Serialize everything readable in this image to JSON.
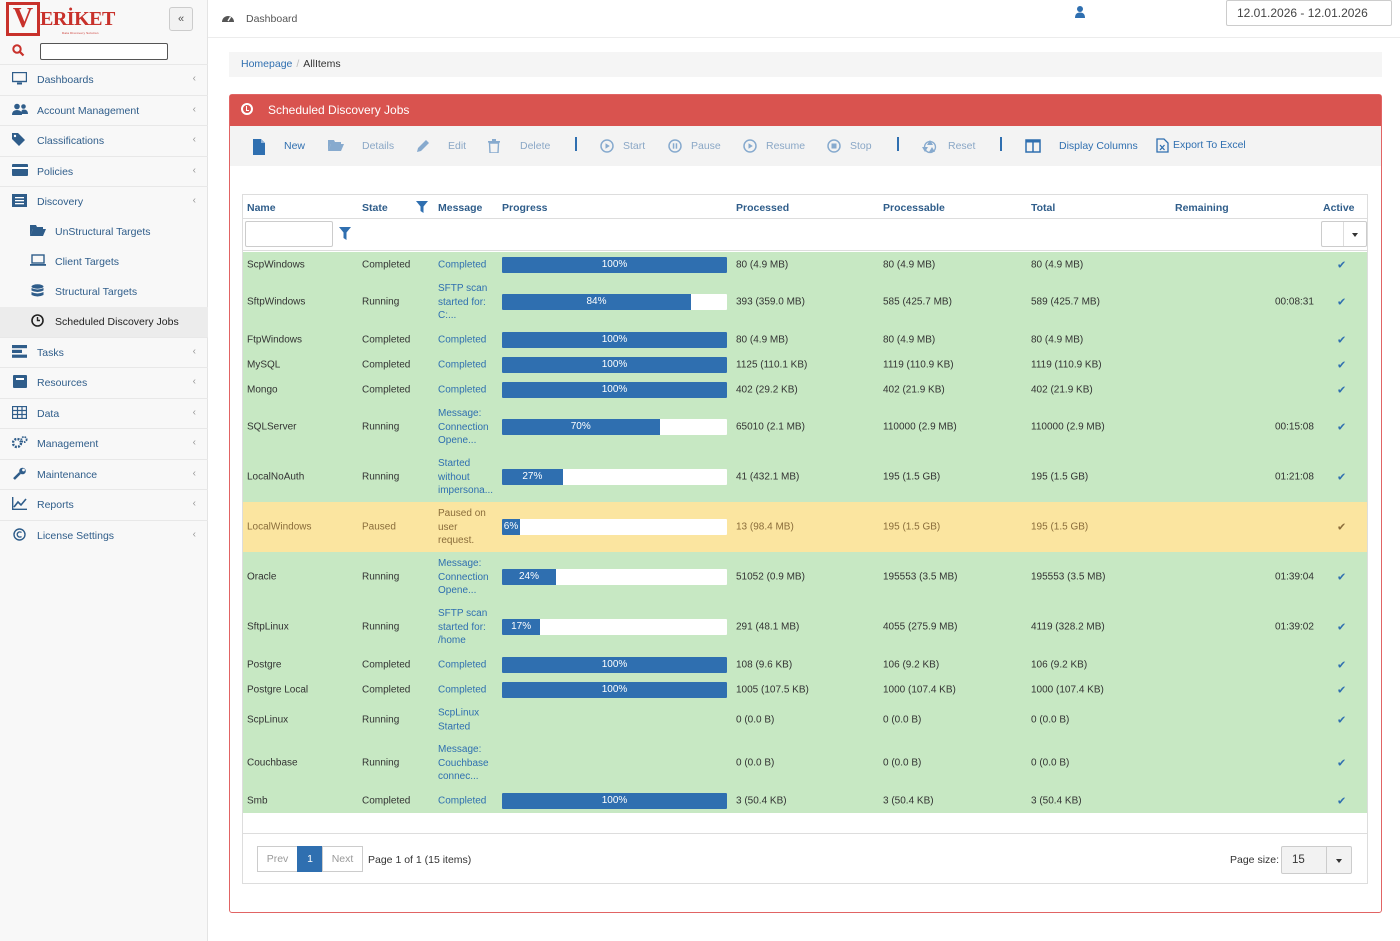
{
  "brand": {
    "logo_letter": "V",
    "logo_word": "ERİKET",
    "tagline": "Data Discovery Solution"
  },
  "sidebar": {
    "collapse_label": "«",
    "items": [
      {
        "label": "Dashboards",
        "icon": "monitor-icon",
        "chevron": "‹"
      },
      {
        "label": "Account Management",
        "icon": "users-icon",
        "chevron": "‹"
      },
      {
        "label": "Classifications",
        "icon": "tags-icon",
        "chevron": "‹"
      },
      {
        "label": "Policies",
        "icon": "card-icon",
        "chevron": "‹"
      },
      {
        "label": "Discovery",
        "icon": "list-icon",
        "chevron": "‹"
      },
      {
        "label": "UnStructural Targets",
        "icon": "folder-icon"
      },
      {
        "label": "Client Targets",
        "icon": "laptop-icon"
      },
      {
        "label": "Structural Targets",
        "icon": "database-icon"
      },
      {
        "label": "Scheduled Discovery Jobs",
        "icon": "clock-icon"
      },
      {
        "label": "Tasks",
        "icon": "tasks-icon",
        "chevron": "‹"
      },
      {
        "label": "Resources",
        "icon": "resource-icon",
        "chevron": "‹"
      },
      {
        "label": "Data",
        "icon": "table-icon",
        "chevron": "‹"
      },
      {
        "label": "Management",
        "icon": "cogs-icon",
        "chevron": "‹"
      },
      {
        "label": "Maintenance",
        "icon": "wrench-icon",
        "chevron": "‹"
      },
      {
        "label": "Reports",
        "icon": "chart-icon",
        "chevron": "‹"
      },
      {
        "label": "License Settings",
        "icon": "copyright-icon",
        "chevron": "‹"
      }
    ]
  },
  "topbar": {
    "page_label": "Dashboard",
    "date_range": "12.01.2026 - 12.01.2026"
  },
  "breadcrumb": {
    "home": "Homepage",
    "sep": "/",
    "current": "AllItems"
  },
  "panel": {
    "title": "Scheduled Discovery Jobs"
  },
  "toolbar": {
    "new": "New",
    "details": "Details",
    "edit": "Edit",
    "delete": "Delete",
    "start": "Start",
    "pause": "Pause",
    "resume": "Resume",
    "stop": "Stop",
    "reset": "Reset",
    "display_columns": "Display Columns",
    "export": "Export To Excel"
  },
  "columns": {
    "name": "Name",
    "state": "State",
    "message": "Message",
    "progress": "Progress",
    "processed": "Processed",
    "processable": "Processable",
    "total": "Total",
    "remaining": "Remaining",
    "active": "Active"
  },
  "colors": {
    "accent": "#2f6fb0",
    "header_red": "#d9534f",
    "row_green": "#c7e8c3",
    "row_paused": "#fbe5a0"
  },
  "rows": [
    {
      "name": "ScpWindows",
      "state": "Completed",
      "msg": [
        "Completed"
      ],
      "progress": 100,
      "processed": "80 (4.9 MB)",
      "processable": "80 (4.9 MB)",
      "total": "80 (4.9 MB)",
      "remaining": "",
      "active": "✔"
    },
    {
      "name": "SftpWindows",
      "state": "Running",
      "msg": [
        "SFTP scan",
        "started for:",
        "C:..."
      ],
      "progress": 84,
      "processed": "393 (359.0 MB)",
      "processable": "585 (425.7 MB)",
      "total": "589 (425.7 MB)",
      "remaining": "00:08:31",
      "active": "✔"
    },
    {
      "name": "FtpWindows",
      "state": "Completed",
      "msg": [
        "Completed"
      ],
      "progress": 100,
      "processed": "80 (4.9 MB)",
      "processable": "80 (4.9 MB)",
      "total": "80 (4.9 MB)",
      "remaining": "",
      "active": "✔"
    },
    {
      "name": "MySQL",
      "state": "Completed",
      "msg": [
        "Completed"
      ],
      "progress": 100,
      "processed": "1125 (110.1 KB)",
      "processable": "1119 (110.9 KB)",
      "total": "1119 (110.9 KB)",
      "remaining": "",
      "active": "✔"
    },
    {
      "name": "Mongo",
      "state": "Completed",
      "msg": [
        "Completed"
      ],
      "progress": 100,
      "processed": "402 (29.2 KB)",
      "processable": "402 (21.9 KB)",
      "total": "402 (21.9 KB)",
      "remaining": "",
      "active": "✔"
    },
    {
      "name": "SQLServer",
      "state": "Running",
      "msg": [
        "Message:",
        "Connection",
        "Opene..."
      ],
      "progress": 70,
      "processed": "65010 (2.1 MB)",
      "processable": "110000 (2.9 MB)",
      "total": "110000 (2.9 MB)",
      "remaining": "00:15:08",
      "active": "✔"
    },
    {
      "name": "LocalNoAuth",
      "state": "Running",
      "msg": [
        "Started",
        "without",
        "impersona..."
      ],
      "progress": 27,
      "processed": "41 (432.1 MB)",
      "processable": "195 (1.5 GB)",
      "total": "195 (1.5 GB)",
      "remaining": "01:21:08",
      "active": "✔"
    },
    {
      "name": "LocalWindows",
      "state": "Paused",
      "msg": [
        "Paused on",
        "user",
        "request."
      ],
      "progress": 6,
      "processed": "13 (98.4 MB)",
      "processable": "195 (1.5 GB)",
      "total": "195 (1.5 GB)",
      "remaining": "",
      "active": "✔"
    },
    {
      "name": "Oracle",
      "state": "Running",
      "msg": [
        "Message:",
        "Connection",
        "Opene..."
      ],
      "progress": 24,
      "processed": "51052 (0.9 MB)",
      "processable": "195553 (3.5 MB)",
      "total": "195553 (3.5 MB)",
      "remaining": "01:39:04",
      "active": "✔"
    },
    {
      "name": "SftpLinux",
      "state": "Running",
      "msg": [
        "SFTP scan",
        "started for:",
        "/home"
      ],
      "progress": 17,
      "processed": "291 (48.1 MB)",
      "processable": "4055 (275.9 MB)",
      "total": "4119 (328.2 MB)",
      "remaining": "01:39:02",
      "active": "✔"
    },
    {
      "name": "Postgre",
      "state": "Completed",
      "msg": [
        "Completed"
      ],
      "progress": 100,
      "processed": "108 (9.6 KB)",
      "processable": "106 (9.2 KB)",
      "total": "106 (9.2 KB)",
      "remaining": "",
      "active": "✔"
    },
    {
      "name": "Postgre Local",
      "state": "Completed",
      "msg": [
        "Completed"
      ],
      "progress": 100,
      "processed": "1005 (107.5 KB)",
      "processable": "1000 (107.4 KB)",
      "total": "1000 (107.4 KB)",
      "remaining": "",
      "active": "✔"
    },
    {
      "name": "ScpLinux",
      "state": "Running",
      "msg": [
        "ScpLinux",
        "Started"
      ],
      "progress": null,
      "processed": "0 (0.0 B)",
      "processable": "0 (0.0 B)",
      "total": "0 (0.0 B)",
      "remaining": "",
      "active": "✔"
    },
    {
      "name": "Couchbase",
      "state": "Running",
      "msg": [
        "Message:",
        "Couchbase",
        "connec..."
      ],
      "progress": null,
      "processed": "0 (0.0 B)",
      "processable": "0 (0.0 B)",
      "total": "0 (0.0 B)",
      "remaining": "",
      "active": "✔"
    },
    {
      "name": "Smb",
      "state": "Completed",
      "msg": [
        "Completed"
      ],
      "progress": 100,
      "processed": "3 (50.4 KB)",
      "processable": "3 (50.4 KB)",
      "total": "3 (50.4 KB)",
      "remaining": "",
      "active": "✔"
    }
  ],
  "pager": {
    "prev": "Prev",
    "page": "1",
    "next": "Next",
    "info": "Page 1 of 1 (15 items)",
    "size_label": "Page size:",
    "size_value": "15"
  }
}
